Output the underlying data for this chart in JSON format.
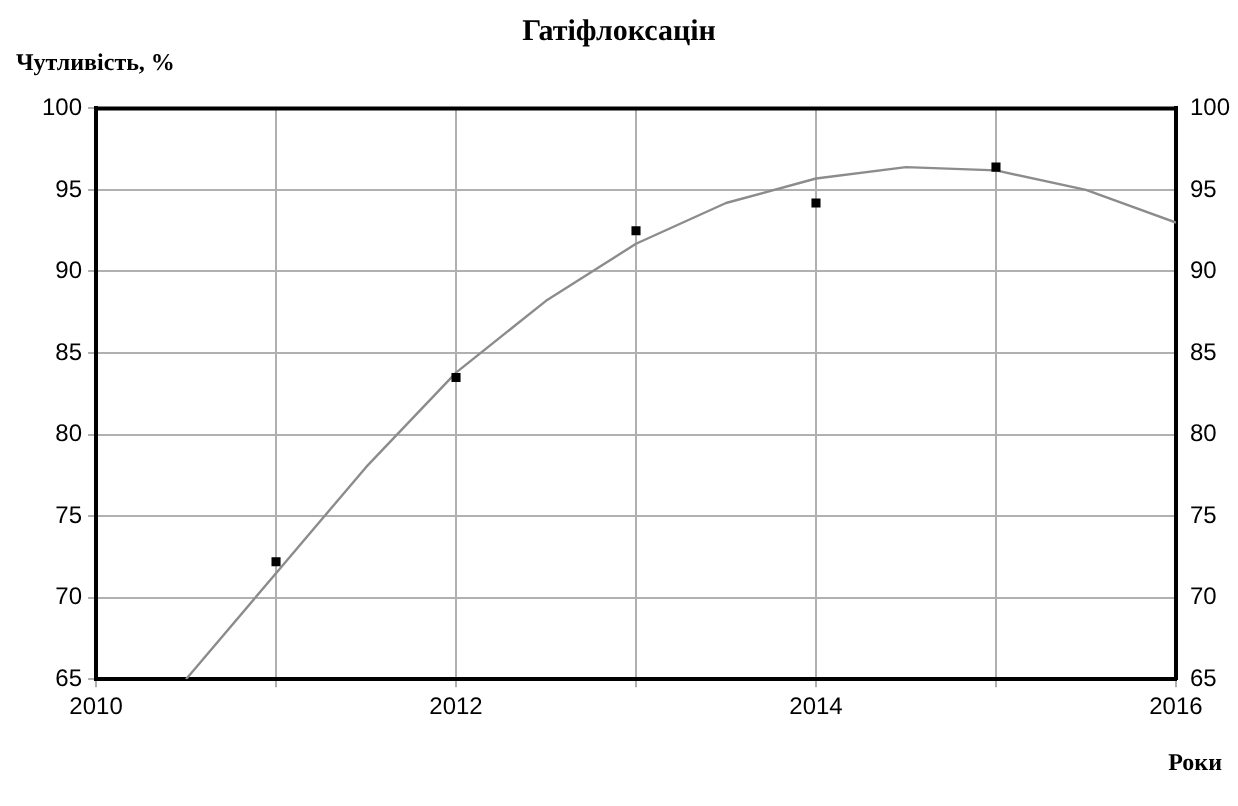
{
  "chart_data": {
    "type": "scatter",
    "title": "Гатіфлоксацін",
    "ylabel": "Чутливість, %",
    "xlabel": "Роки",
    "xlim": [
      2010,
      2016
    ],
    "xticks": [
      2010,
      {
        "value": 2011,
        "label": null
      },
      2012,
      {
        "value": 2013,
        "label": null
      },
      2014,
      {
        "value": 2015,
        "label": null
      },
      2016
    ],
    "ylim": [
      65,
      100
    ],
    "yticks": [
      65,
      70,
      75,
      80,
      85,
      90,
      95,
      100
    ],
    "y2lim": [
      65,
      100
    ],
    "y2ticks": [
      65,
      70,
      75,
      80,
      85,
      90,
      95,
      100
    ],
    "grid": true,
    "legend": false,
    "marker": "square",
    "series": [
      {
        "type": "scatter",
        "color": "#000000",
        "x": [
          2011,
          2012,
          2013,
          2014,
          2015
        ],
        "values": [
          72.2,
          83.5,
          92.5,
          94.2,
          96.4
        ]
      },
      {
        "type": "line",
        "color": "#8c8c8c",
        "marker": "none",
        "line_style": "solid",
        "x": [
          2010.5,
          2011,
          2011.5,
          2012,
          2012.5,
          2013,
          2013.5,
          2014,
          2014.5,
          2015,
          2015.5,
          2016
        ],
        "values": [
          65,
          71.5,
          78,
          83.8,
          88.2,
          91.7,
          94.2,
          95.7,
          96.4,
          96.2,
          95,
          93
        ]
      }
    ]
  }
}
